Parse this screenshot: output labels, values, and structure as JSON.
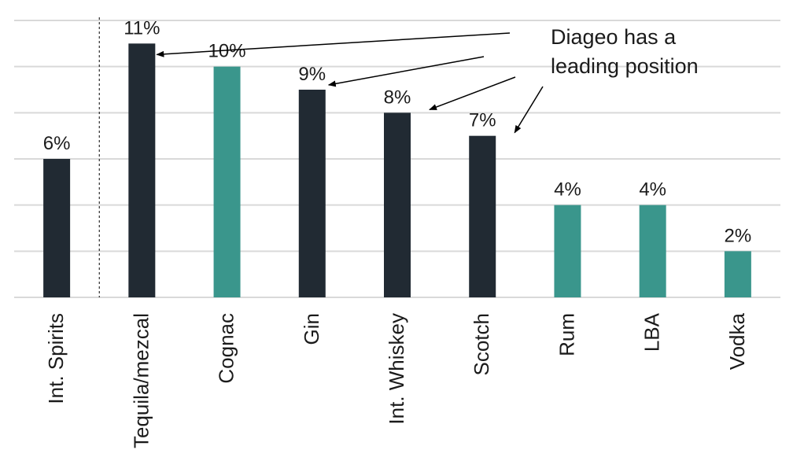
{
  "chart_data": {
    "type": "bar",
    "categories": [
      "Int. Spirits",
      "Tequila/mezcal",
      "Cognac",
      "Gin",
      "Int. Whiskey",
      "Scotch",
      "Rum",
      "LBA",
      "Vodka"
    ],
    "values": [
      6,
      11,
      10,
      9,
      8,
      7,
      4,
      4,
      2
    ],
    "data_labels": [
      "6%",
      "11%",
      "10%",
      "9%",
      "8%",
      "7%",
      "4%",
      "4%",
      "2%"
    ],
    "bar_colors": [
      "#212a33",
      "#212a33",
      "#3a968c",
      "#212a33",
      "#212a33",
      "#212a33",
      "#3a968c",
      "#3a968c",
      "#3a968c"
    ],
    "ylim": [
      0,
      12
    ],
    "grid": true,
    "legend": "none",
    "annotation": {
      "lines": [
        "Diageo has a",
        "leading position"
      ],
      "points_to": [
        "Tequila/mezcal",
        "Gin",
        "Int. Whiskey",
        "Scotch"
      ]
    },
    "separator_after": "Int. Spirits"
  }
}
